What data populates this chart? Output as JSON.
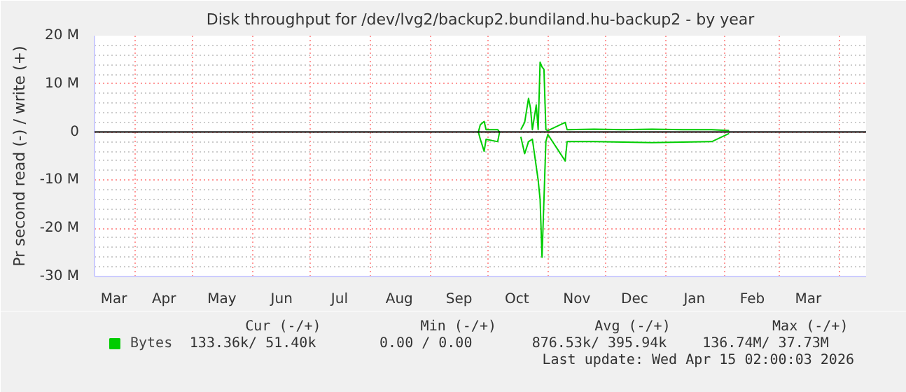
{
  "chart_data": {
    "type": "line",
    "title": "Disk throughput for /dev/lvg2/backup2.bundiland.hu-backup2 - by year",
    "ylabel": "Pr second read (-) / write (+)",
    "xlim": [
      "2025-03-11",
      "2026-04-15"
    ],
    "xticks": [
      {
        "value": "2025-03-21",
        "label": "Mar"
      },
      {
        "value": "2025-04-01",
        "label": null
      },
      {
        "value": "2025-04-16",
        "label": "Apr"
      },
      {
        "value": "2025-05-01",
        "label": null
      },
      {
        "value": "2025-05-16",
        "label": "May"
      },
      {
        "value": "2025-06-01",
        "label": null
      },
      {
        "value": "2025-06-16",
        "label": "Jun"
      },
      {
        "value": "2025-07-01",
        "label": null
      },
      {
        "value": "2025-07-16",
        "label": "Jul"
      },
      {
        "value": "2025-08-01",
        "label": null
      },
      {
        "value": "2025-08-16",
        "label": "Aug"
      },
      {
        "value": "2025-09-01",
        "label": null
      },
      {
        "value": "2025-09-16",
        "label": "Sep"
      },
      {
        "value": "2025-10-01",
        "label": null
      },
      {
        "value": "2025-10-16",
        "label": "Oct"
      },
      {
        "value": "2025-11-01",
        "label": null
      },
      {
        "value": "2025-11-16",
        "label": "Nov"
      },
      {
        "value": "2025-12-01",
        "label": null
      },
      {
        "value": "2025-12-16",
        "label": "Dec"
      },
      {
        "value": "2026-01-01",
        "label": null
      },
      {
        "value": "2026-01-16",
        "label": "Jan"
      },
      {
        "value": "2026-02-01",
        "label": null
      },
      {
        "value": "2026-02-15",
        "label": "Feb"
      },
      {
        "value": "2026-03-01",
        "label": null
      },
      {
        "value": "2026-03-16",
        "label": "Mar"
      },
      {
        "value": "2026-04-01",
        "label": null
      }
    ],
    "ylim": [
      -30,
      20
    ],
    "yticks": [
      {
        "value": -30,
        "label": "-30 M"
      },
      {
        "value": -28,
        "label": null
      },
      {
        "value": -26,
        "label": null
      },
      {
        "value": -24,
        "label": null
      },
      {
        "value": -22,
        "label": null
      },
      {
        "value": -20,
        "label": "-20 M"
      },
      {
        "value": -18,
        "label": null
      },
      {
        "value": -16,
        "label": null
      },
      {
        "value": -14,
        "label": null
      },
      {
        "value": -12,
        "label": null
      },
      {
        "value": -10,
        "label": "-10 M"
      },
      {
        "value": -8,
        "label": null
      },
      {
        "value": -6,
        "label": null
      },
      {
        "value": -4,
        "label": null
      },
      {
        "value": -2,
        "label": null
      },
      {
        "value": 0,
        "label": "0"
      },
      {
        "value": 2,
        "label": null
      },
      {
        "value": 4,
        "label": null
      },
      {
        "value": 6,
        "label": null
      },
      {
        "value": 8,
        "label": null
      },
      {
        "value": 10,
        "label": "10 M"
      },
      {
        "value": 12,
        "label": null
      },
      {
        "value": 14,
        "label": null
      },
      {
        "value": 16,
        "label": null
      },
      {
        "value": 18,
        "label": null
      },
      {
        "value": 20,
        "label": "20 M"
      }
    ],
    "grid": true,
    "legend": "bottom left",
    "line_style": "solid",
    "marker": "none",
    "ref_lines": [
      {
        "axis": "y",
        "value": 0,
        "label": null,
        "color": "#000000"
      }
    ],
    "series": [
      {
        "name": "Bytes",
        "color": "#00cc00",
        "x": [
          "2025-09-26",
          "2025-09-27",
          "2025-09-29",
          "2025-09-30",
          "2025-10-06",
          "2025-10-07",
          "2025-10-08",
          "2025-10-18",
          "2025-10-20",
          "2025-10-22",
          "2025-10-23",
          "2025-10-24",
          "2025-10-26",
          "2025-10-27",
          "2025-10-28",
          "2025-10-29",
          "2025-10-30",
          "2025-10-31",
          "2025-11-01",
          "2025-11-10",
          "2025-11-11",
          "2025-11-25",
          "2025-12-10",
          "2025-12-25",
          "2026-01-10",
          "2026-01-25",
          "2026-02-03"
        ],
        "values": [
          0,
          1.5,
          2.2,
          0.5,
          0.5,
          0,
          null,
          0.5,
          2,
          7,
          5,
          0.5,
          5.6,
          0.5,
          14.5,
          13.5,
          13,
          0.5,
          0.3,
          2,
          0.5,
          0.6,
          0.5,
          0.6,
          0.5,
          0.5,
          0.3
        ]
      },
      {
        "color": "#00cc00",
        "x": [
          "2025-09-26",
          "2025-09-27",
          "2025-09-29",
          "2025-09-30",
          "2025-10-06",
          "2025-10-07",
          "2025-10-08",
          "2025-10-18",
          "2025-10-20",
          "2025-10-22",
          "2025-10-24",
          "2025-10-27",
          "2025-10-28",
          "2025-10-29",
          "2025-10-30",
          "2025-10-31",
          "2025-11-01",
          "2025-11-10",
          "2025-11-11",
          "2025-11-25",
          "2025-12-10",
          "2025-12-25",
          "2026-01-10",
          "2026-01-25",
          "2026-02-03"
        ],
        "values": [
          0,
          -1.5,
          -4,
          -1.5,
          -2,
          0,
          null,
          -1,
          -4.5,
          -2,
          -1.5,
          -10,
          -14,
          -26,
          -14,
          -2,
          -0.5,
          -6,
          -2,
          -2,
          -2.1,
          -2.2,
          -2.1,
          -2,
          -0.3
        ]
      }
    ],
    "annotations": [
      "Cur (-/+)",
      "Min (-/+)",
      "Avg (-/+)",
      "Max (-/+)",
      "133.36k/    51.40k",
      "0.00 /     0.00",
      "876.53k/   395.94k",
      "136.74M/    37.73M",
      "Last update: Wed Apr 15 02:00:03 2026"
    ]
  }
}
